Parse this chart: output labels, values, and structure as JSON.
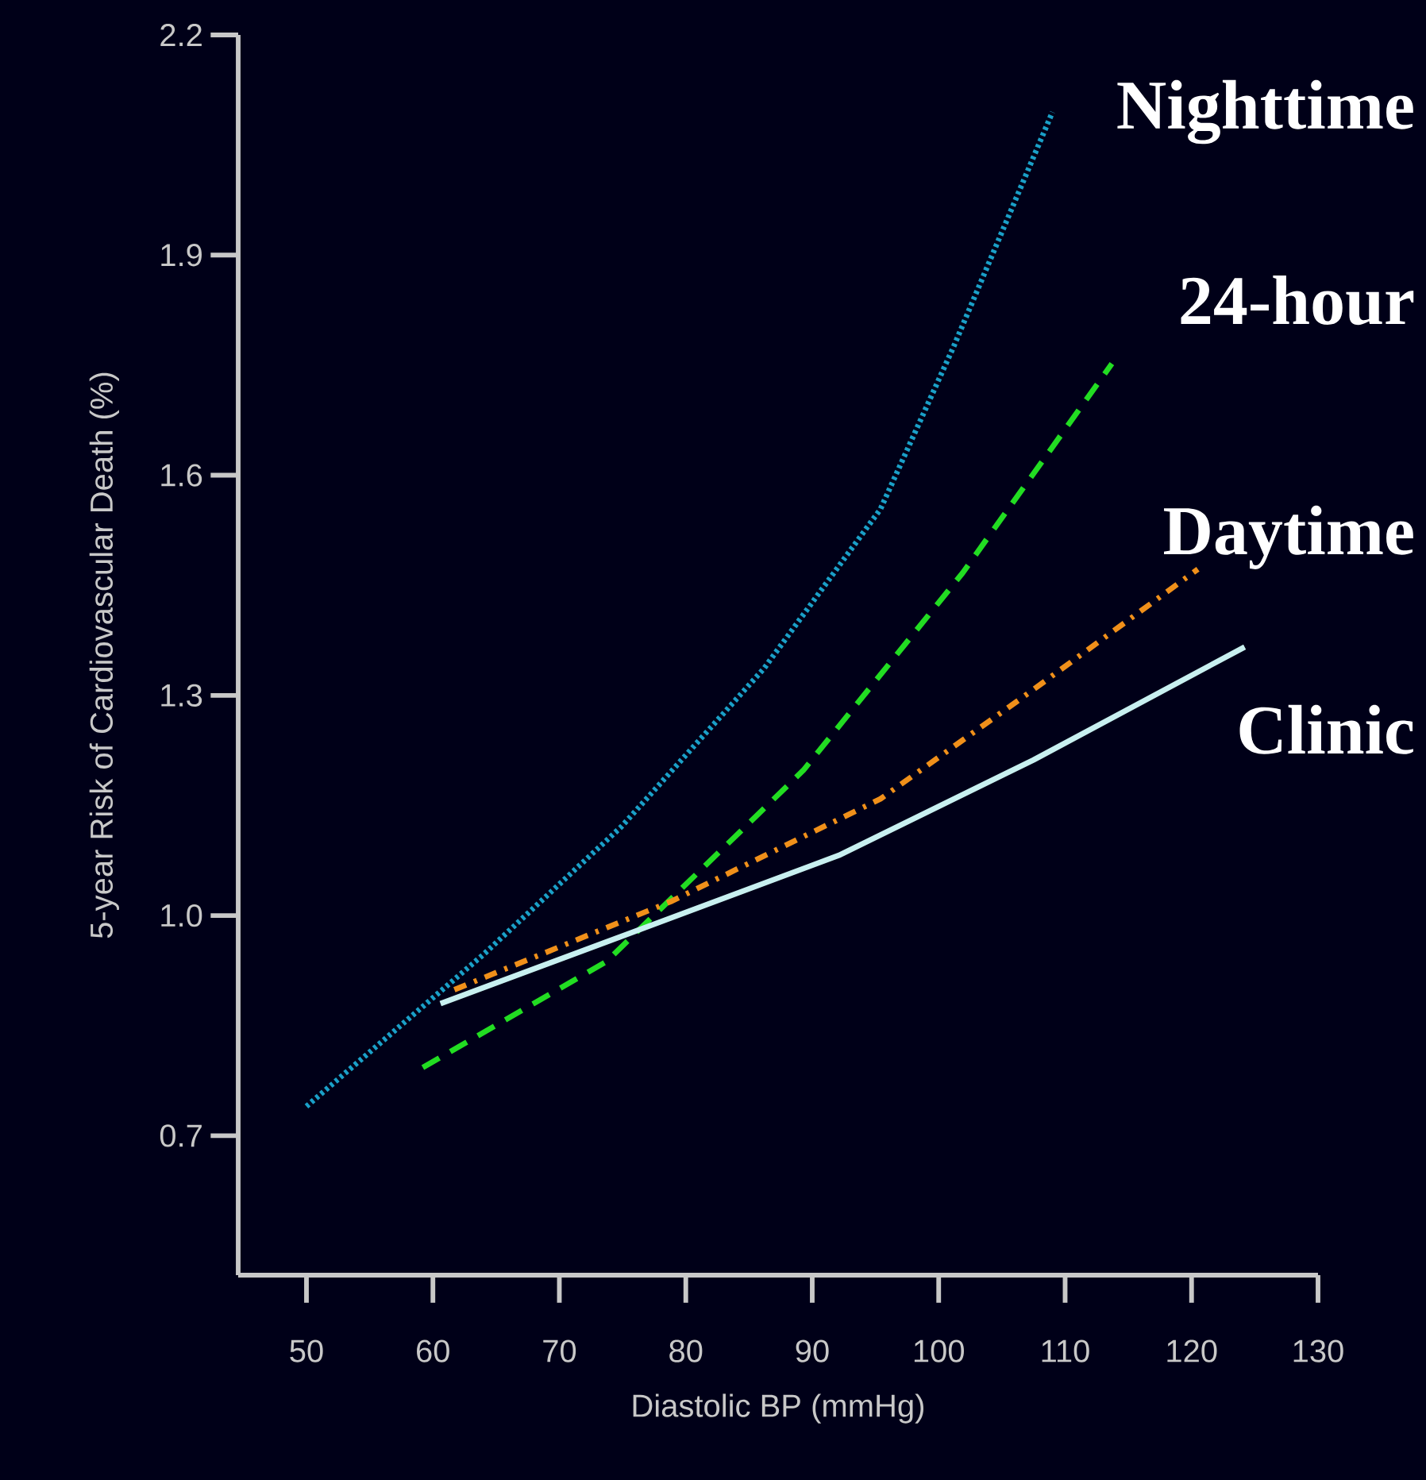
{
  "chart_data": {
    "type": "line",
    "xlabel": "Diastolic BP (mmHg)",
    "ylabel": "5-year Risk of Cardiovascular Death (%)",
    "xlim": [
      44.6,
      130
    ],
    "ylim": [
      0.51,
      2.2
    ],
    "xticks": [
      50,
      60,
      70,
      80,
      90,
      100,
      110,
      120,
      130
    ],
    "yticks": [
      {
        "value": 0.7,
        "label": "0.7"
      },
      {
        "value": 1.0,
        "label": "1.0"
      },
      {
        "value": 1.3,
        "label": "1.3"
      },
      {
        "value": 1.6,
        "label": "1.6"
      },
      {
        "value": 1.9,
        "label": "1.9"
      },
      {
        "value": 2.2,
        "label": "2.2"
      }
    ],
    "grid": false,
    "legend": false,
    "marker": "none",
    "series": [
      {
        "name": "Nighttime",
        "color": "#1aa0c8",
        "line_style": "dotted",
        "x": [
          50,
          64,
          74.9,
          86.2,
          95.4,
          101.2,
          109
        ],
        "values": [
          0.74,
          0.947,
          1.121,
          1.337,
          1.554,
          1.776,
          2.095
        ]
      },
      {
        "name": "24-hour",
        "color": "#22dd22",
        "line_style": "dashed",
        "x": [
          59.2,
          73.7,
          89.3,
          101.9,
          113.7
        ],
        "values": [
          0.793,
          0.937,
          1.198,
          1.467,
          1.752
        ]
      },
      {
        "name": "Daytime",
        "color": "#f0901a",
        "line_style": "dashdotted",
        "x": [
          61.7,
          78.8,
          95.4,
          107.5,
          120.5
        ],
        "values": [
          0.899,
          1.019,
          1.159,
          1.308,
          1.472
        ]
      },
      {
        "name": "Clinic",
        "color": "#c8f0f0",
        "line_style": "solid",
        "x": [
          60.6,
          75.6,
          92.1,
          107.5,
          124.2
        ],
        "values": [
          0.88,
          0.976,
          1.082,
          1.212,
          1.366
        ]
      }
    ]
  }
}
